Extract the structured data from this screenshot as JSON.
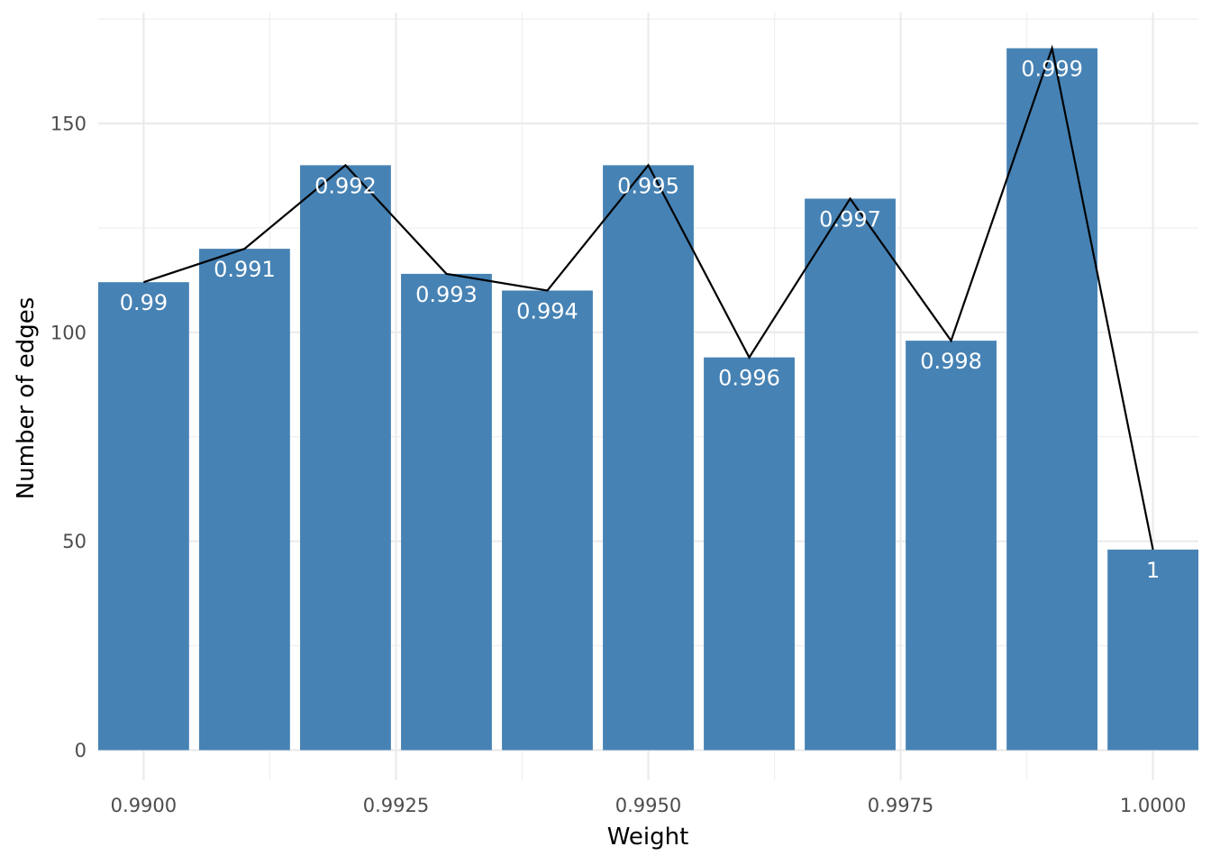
{
  "chart_data": {
    "type": "bar",
    "title": "",
    "xlabel": "Weight",
    "ylabel": "Number of edges",
    "xlim": [
      0.98955,
      1.00045
    ],
    "ylim": [
      0,
      175
    ],
    "x_ticks": [
      "0.9900",
      "0.9925",
      "0.9950",
      "0.9975",
      "1.0000"
    ],
    "x_tick_values": [
      0.99,
      0.9925,
      0.995,
      0.9975,
      1.0
    ],
    "y_ticks": [
      "0",
      "50",
      "100",
      "150"
    ],
    "y_tick_values": [
      0,
      50,
      100,
      150
    ],
    "grid": true,
    "bar_color": "#4682b4",
    "line_color": "#000000",
    "x": [
      0.99,
      0.991,
      0.992,
      0.993,
      0.994,
      0.995,
      0.996,
      0.997,
      0.998,
      0.999,
      1.0
    ],
    "values": [
      112,
      120,
      140,
      114,
      110,
      140,
      94,
      132,
      98,
      168,
      48
    ],
    "bar_labels": [
      "0.99",
      "0.991",
      "0.992",
      "0.993",
      "0.994",
      "0.995",
      "0.996",
      "0.997",
      "0.998",
      "0.999",
      "1"
    ]
  }
}
